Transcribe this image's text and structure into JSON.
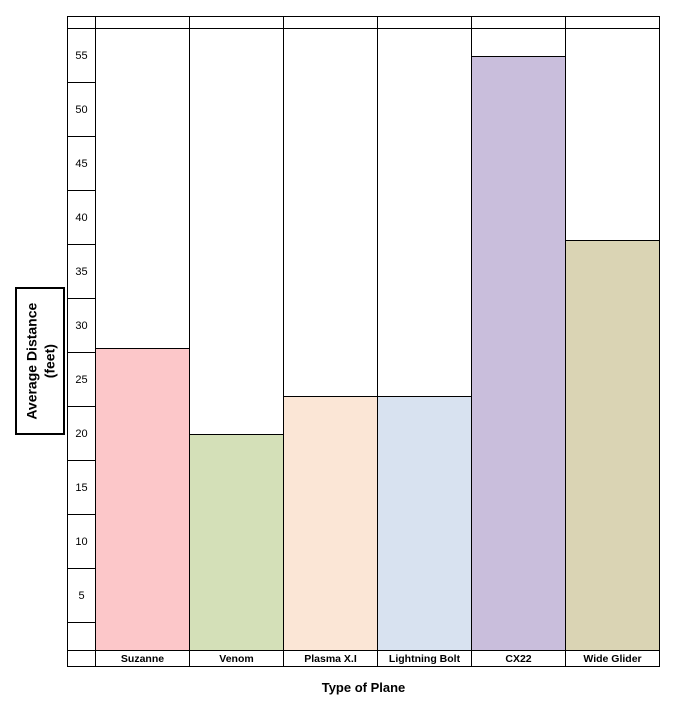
{
  "axis_titles": {
    "y_line1": "Average Distance",
    "y_line2": "(feet)",
    "x": "Type of Plane"
  },
  "chart_data": {
    "type": "bar",
    "title": "",
    "xlabel": "Type of Plane",
    "ylabel": "Average Distance (feet)",
    "categories": [
      "Suzanne",
      "Venom",
      "Plasma X.I",
      "Lightning Bolt",
      "CX22",
      "Wide Glider"
    ],
    "values": [
      28,
      20,
      23.5,
      23.5,
      55,
      38
    ],
    "bar_colors": [
      "#FCC7C9",
      "#D4E0B8",
      "#FBE6D6",
      "#D8E2F0",
      "#C9BEDC",
      "#DAD4B4"
    ],
    "yticks": [
      55,
      50,
      45,
      40,
      35,
      30,
      25,
      20,
      15,
      10,
      5
    ],
    "ylim": [
      0,
      57.5
    ],
    "grid": "axis-band-lines-only",
    "legend": "none",
    "border_color": "#000000"
  }
}
